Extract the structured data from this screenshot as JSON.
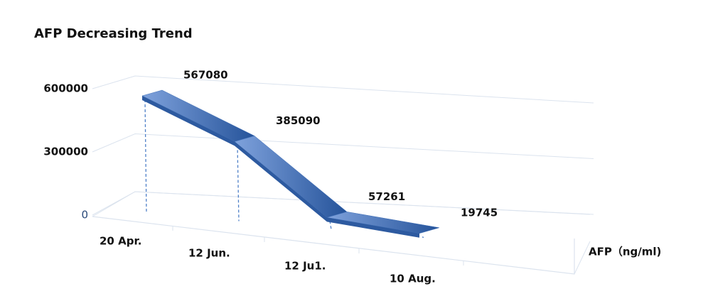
{
  "chart_data": {
    "type": "line3d",
    "title": "AFP Decreasing Trend",
    "categories": [
      "20 Apr.",
      "12 Jun.",
      "12 Ju1.",
      "10 Aug."
    ],
    "series": [
      {
        "name": "AFP（ng/ml)",
        "color": "#3f6fb8",
        "values": [
          567080,
          385090,
          57261,
          19745
        ]
      }
    ],
    "ylim": [
      0,
      600000
    ],
    "yticks": [
      0,
      300000,
      600000
    ],
    "grid": true,
    "data_labels": true,
    "legend": "right"
  }
}
